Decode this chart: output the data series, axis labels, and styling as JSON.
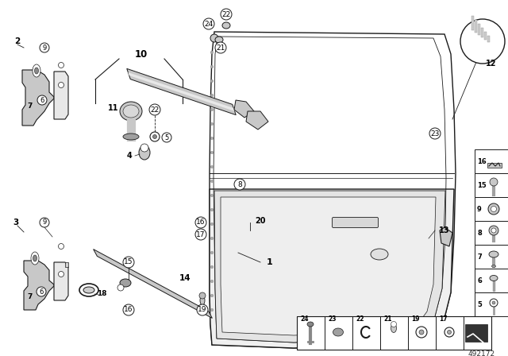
{
  "background_color": "#ffffff",
  "line_color": "#1a1a1a",
  "gray1": "#c8c8c8",
  "gray2": "#a0a0a0",
  "gray3": "#e8e8e8",
  "diagram_number": "492172",
  "figsize": [
    6.4,
    4.48
  ],
  "dpi": 100
}
